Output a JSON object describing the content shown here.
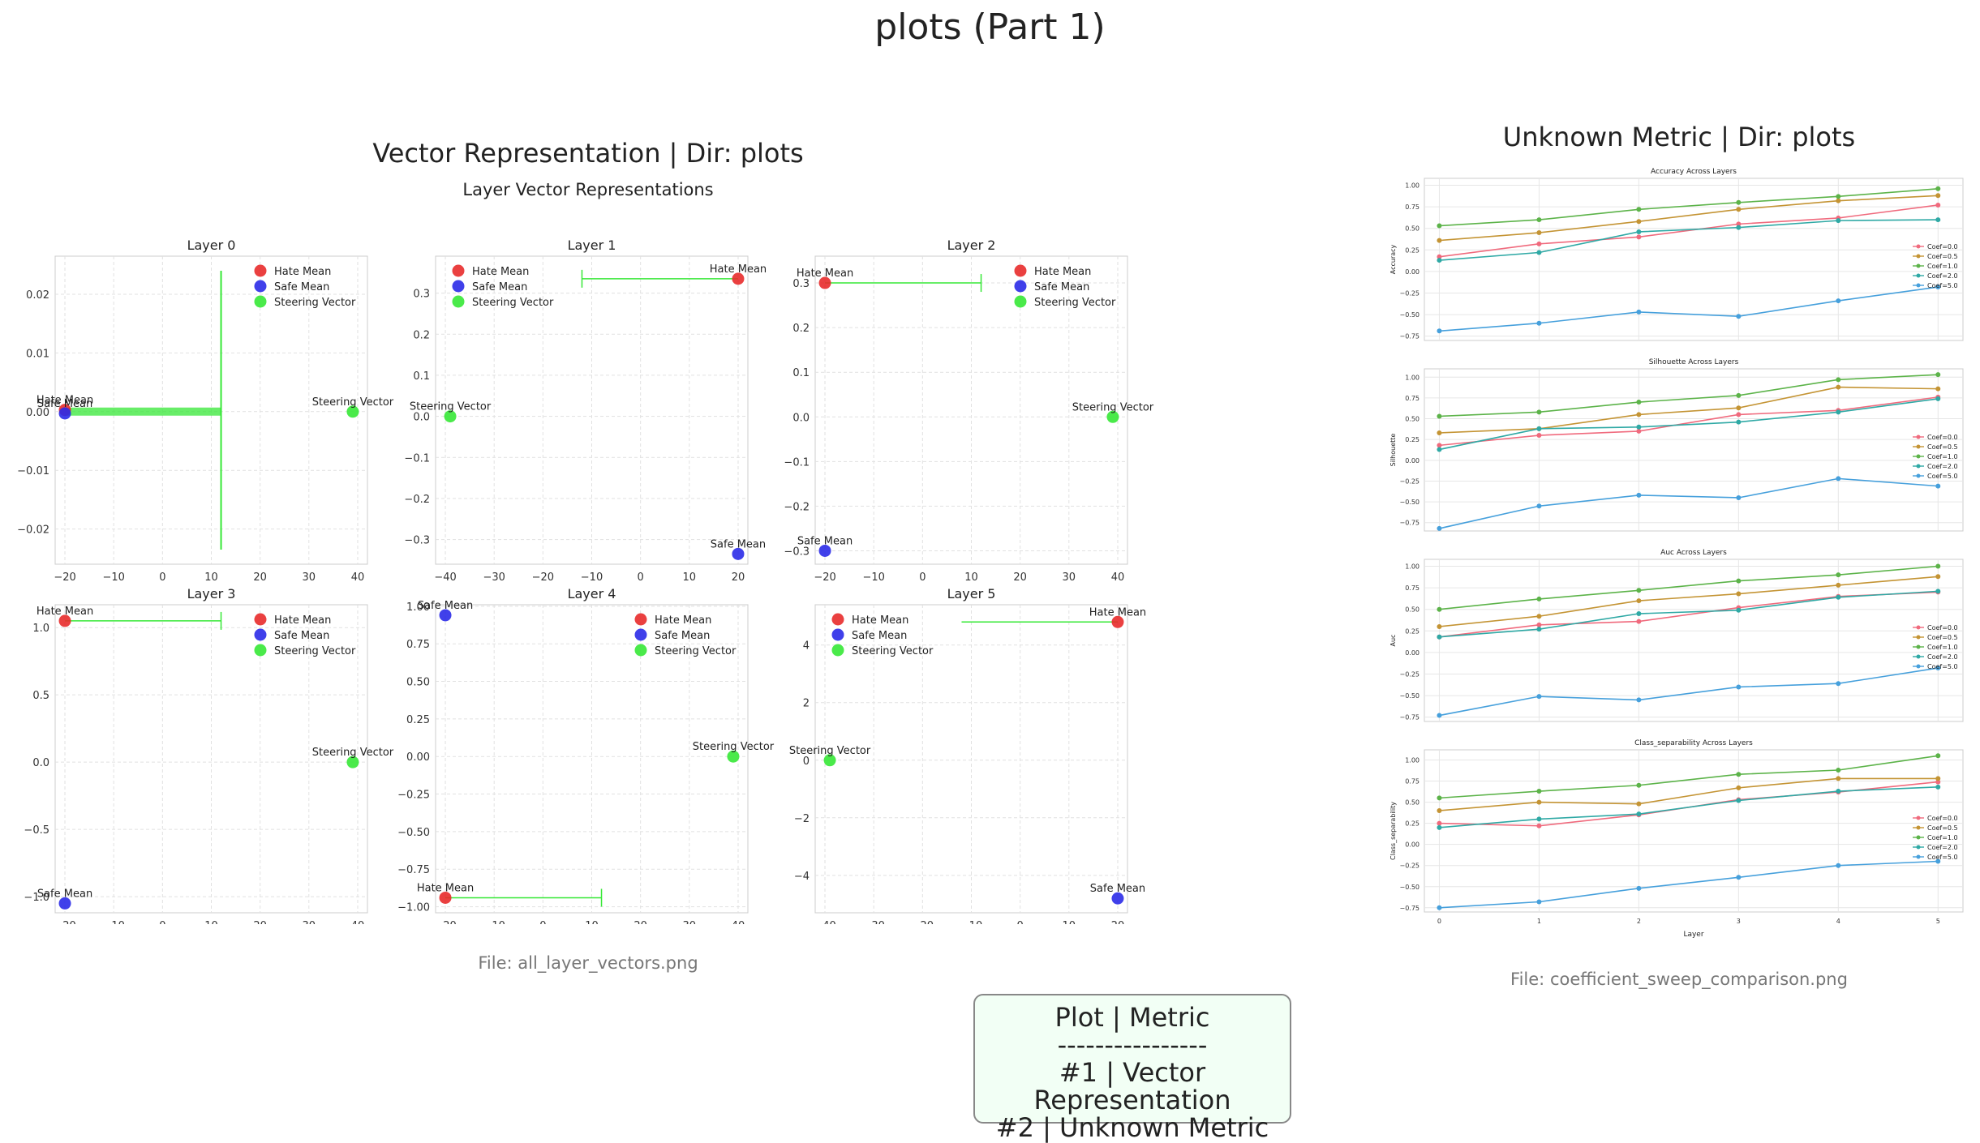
{
  "page": {
    "title": "plots (Part 1)",
    "left_panel": {
      "title": "Vector Representation | Dir: plots",
      "suptitle": "Layer Vector Representations",
      "file": "File: all_layer_vectors.png"
    },
    "right_panel": {
      "title": "Unknown Metric | Dir: plots",
      "file": "File: coefficient_sweep_comparison.png"
    },
    "legend_box": {
      "header": "Plot | Metric",
      "divider": "----------------",
      "rows": [
        "#1 | Vector Representation",
        "#2 | Unknown Metric"
      ]
    }
  },
  "colors": {
    "hate": "#e82b2b",
    "safe": "#2b2be8",
    "steer": "#36e836",
    "coef": [
      "#f06a7d",
      "#c49434",
      "#5cb349",
      "#2fa9a5",
      "#46a0dc"
    ]
  },
  "chart_data": [
    {
      "type": "scatter",
      "title": "Layer 0",
      "xlim": [
        -22,
        42
      ],
      "ylim": [
        -0.026,
        0.0265
      ],
      "xticks": [
        -20,
        -10,
        0,
        10,
        20,
        30,
        40
      ],
      "xtick_labels": [
        "−20",
        "−10",
        "0",
        "10",
        "20",
        "30",
        "40"
      ],
      "yticks": [
        -0.02,
        -0.01,
        0.0,
        0.01,
        0.02
      ],
      "ytick_labels": [
        "−0.02",
        "−0.01",
        "0.00",
        "0.01",
        "0.02"
      ],
      "legend": [
        "Hate Mean",
        "Safe Mean",
        "Steering Vector"
      ],
      "legend_pos": "top-right",
      "points": [
        {
          "label": "Hate Mean",
          "x": -20,
          "y": 0.0003,
          "kind": "hate"
        },
        {
          "label": "Safe Mean",
          "x": -20,
          "y": -0.0003,
          "kind": "safe"
        },
        {
          "label": "Steering Vector",
          "x": 39,
          "y": 0.0,
          "kind": "steer"
        }
      ],
      "arrow": {
        "x1": -20,
        "y1": 0.0,
        "x2": 12,
        "y2": 0.0,
        "head": "large"
      }
    },
    {
      "type": "scatter",
      "title": "Layer 1",
      "xlim": [
        -42,
        22
      ],
      "ylim": [
        -0.36,
        0.39
      ],
      "xticks": [
        -40,
        -30,
        -20,
        -10,
        0,
        10,
        20
      ],
      "xtick_labels": [
        "−40",
        "−30",
        "−20",
        "−10",
        "0",
        "10",
        "20"
      ],
      "yticks": [
        -0.3,
        -0.2,
        -0.1,
        0.0,
        0.1,
        0.2,
        0.3
      ],
      "ytick_labels": [
        "−0.3",
        "−0.2",
        "−0.1",
        "0.0",
        "0.1",
        "0.2",
        "0.3"
      ],
      "legend": [
        "Hate Mean",
        "Safe Mean",
        "Steering Vector"
      ],
      "legend_pos": "top-left",
      "points": [
        {
          "label": "Hate Mean",
          "x": 20,
          "y": 0.335,
          "kind": "hate"
        },
        {
          "label": "Safe Mean",
          "x": 20,
          "y": -0.335,
          "kind": "safe"
        },
        {
          "label": "Steering Vector",
          "x": -39,
          "y": 0.0,
          "kind": "steer"
        }
      ],
      "arrow": {
        "x1": 20,
        "y1": 0.335,
        "x2": -12,
        "y2": 0.335,
        "head": "bar"
      }
    },
    {
      "type": "scatter",
      "title": "Layer 2",
      "xlim": [
        -22,
        42
      ],
      "ylim": [
        -0.33,
        0.36
      ],
      "xticks": [
        -20,
        -10,
        0,
        10,
        20,
        30,
        40
      ],
      "xtick_labels": [
        "−20",
        "−10",
        "0",
        "10",
        "20",
        "30",
        "40"
      ],
      "yticks": [
        -0.3,
        -0.2,
        -0.1,
        0.0,
        0.1,
        0.2,
        0.3
      ],
      "ytick_labels": [
        "−0.3",
        "−0.2",
        "−0.1",
        "0.0",
        "0.1",
        "0.2",
        "0.3"
      ],
      "legend": [
        "Hate Mean",
        "Safe Mean",
        "Steering Vector"
      ],
      "legend_pos": "top-right",
      "points": [
        {
          "label": "Hate Mean",
          "x": -20,
          "y": 0.3,
          "kind": "hate"
        },
        {
          "label": "Safe Mean",
          "x": -20,
          "y": -0.3,
          "kind": "safe"
        },
        {
          "label": "Steering Vector",
          "x": 39,
          "y": 0.0,
          "kind": "steer"
        }
      ],
      "arrow": {
        "x1": -20,
        "y1": 0.3,
        "x2": 12,
        "y2": 0.3,
        "head": "bar"
      }
    },
    {
      "type": "scatter",
      "title": "Layer 3",
      "xlim": [
        -22,
        42
      ],
      "ylim": [
        -1.12,
        1.17
      ],
      "xticks": [
        -20,
        -10,
        0,
        10,
        20,
        30,
        40
      ],
      "xtick_labels": [
        "−20",
        "−10",
        "0",
        "10",
        "20",
        "30",
        "40"
      ],
      "yticks": [
        -1.0,
        -0.5,
        0.0,
        0.5,
        1.0
      ],
      "ytick_labels": [
        "−1.0",
        "−0.5",
        "0.0",
        "0.5",
        "1.0"
      ],
      "legend": [
        "Hate Mean",
        "Safe Mean",
        "Steering Vector"
      ],
      "legend_pos": "top-right",
      "points": [
        {
          "label": "Hate Mean",
          "x": -20,
          "y": 1.05,
          "kind": "hate"
        },
        {
          "label": "Safe Mean",
          "x": -20,
          "y": -1.05,
          "kind": "safe"
        },
        {
          "label": "Steering Vector",
          "x": 39,
          "y": 0.0,
          "kind": "steer"
        }
      ],
      "arrow": {
        "x1": -20,
        "y1": 1.05,
        "x2": 12,
        "y2": 1.05,
        "head": "bar"
      }
    },
    {
      "type": "scatter",
      "title": "Layer 4",
      "xlim": [
        -22,
        42
      ],
      "ylim": [
        -1.04,
        1.01
      ],
      "xticks": [
        -20,
        -10,
        0,
        10,
        20,
        30,
        40
      ],
      "xtick_labels": [
        "−20",
        "−10",
        "0",
        "10",
        "20",
        "30",
        "40"
      ],
      "yticks": [
        -1.0,
        -0.75,
        -0.5,
        -0.25,
        0.0,
        0.25,
        0.5,
        0.75,
        1.0
      ],
      "ytick_labels": [
        "−1.00",
        "−0.75",
        "−0.50",
        "−0.25",
        "0.00",
        "0.25",
        "0.50",
        "0.75",
        "1.00"
      ],
      "legend": [
        "Hate Mean",
        "Safe Mean",
        "Steering Vector"
      ],
      "legend_pos": "top-right",
      "points": [
        {
          "label": "Hate Mean",
          "x": -20,
          "y": -0.94,
          "kind": "hate"
        },
        {
          "label": "Safe Mean",
          "x": -20,
          "y": 0.94,
          "kind": "safe"
        },
        {
          "label": "Steering Vector",
          "x": 39,
          "y": 0.0,
          "kind": "steer"
        }
      ],
      "arrow": {
        "x1": -20,
        "y1": -0.94,
        "x2": 12,
        "y2": -0.94,
        "head": "bar"
      }
    },
    {
      "type": "scatter",
      "title": "Layer 5",
      "xlim": [
        -42,
        22
      ],
      "ylim": [
        -5.3,
        5.4
      ],
      "xticks": [
        -40,
        -30,
        -20,
        -10,
        0,
        10,
        20
      ],
      "xtick_labels": [
        "−40",
        "−30",
        "−20",
        "−10",
        "0",
        "10",
        "20"
      ],
      "yticks": [
        -4,
        -2,
        0,
        2,
        4
      ],
      "ytick_labels": [
        "−4",
        "−2",
        "0",
        "2",
        "4"
      ],
      "legend": [
        "Hate Mean",
        "Safe Mean",
        "Steering Vector"
      ],
      "legend_pos": "top-left",
      "points": [
        {
          "label": "Hate Mean",
          "x": 20,
          "y": 4.8,
          "kind": "hate"
        },
        {
          "label": "Safe Mean",
          "x": 20,
          "y": -4.8,
          "kind": "safe"
        },
        {
          "label": "Steering Vector",
          "x": -39,
          "y": 0.0,
          "kind": "steer"
        }
      ],
      "arrow": {
        "x1": 20,
        "y1": 4.8,
        "x2": -12,
        "y2": 4.8,
        "head": "none"
      }
    },
    {
      "type": "line",
      "title": "Accuracy Across Layers",
      "ylabel": "Accuracy",
      "xlim": [
        -0.15,
        5.25
      ],
      "ylim": [
        -0.8,
        1.08
      ],
      "x": [
        0,
        1,
        2,
        3,
        4,
        5
      ],
      "yticks": [
        -0.75,
        -0.5,
        -0.25,
        0.0,
        0.25,
        0.5,
        0.75,
        1.0
      ],
      "ytick_labels": [
        "−0.75",
        "−0.50",
        "−0.25",
        "0.00",
        "0.25",
        "0.50",
        "0.75",
        "1.00"
      ],
      "legend_pos": "right",
      "series": [
        {
          "name": "Coef=0.0",
          "values": [
            0.17,
            0.32,
            0.4,
            0.55,
            0.62,
            0.77
          ]
        },
        {
          "name": "Coef=0.5",
          "values": [
            0.36,
            0.45,
            0.58,
            0.72,
            0.82,
            0.88
          ]
        },
        {
          "name": "Coef=1.0",
          "values": [
            0.53,
            0.6,
            0.72,
            0.8,
            0.87,
            0.96
          ]
        },
        {
          "name": "Coef=2.0",
          "values": [
            0.13,
            0.22,
            0.46,
            0.51,
            0.59,
            0.6
          ]
        },
        {
          "name": "Coef=5.0",
          "values": [
            -0.69,
            -0.6,
            -0.47,
            -0.52,
            -0.34,
            -0.18
          ]
        }
      ]
    },
    {
      "type": "line",
      "title": "Silhouette Across Layers",
      "ylabel": "Silhouette",
      "xlim": [
        -0.15,
        5.25
      ],
      "ylim": [
        -0.85,
        1.1
      ],
      "x": [
        0,
        1,
        2,
        3,
        4,
        5
      ],
      "yticks": [
        -0.75,
        -0.5,
        -0.25,
        0.0,
        0.25,
        0.5,
        0.75,
        1.0
      ],
      "ytick_labels": [
        "−0.75",
        "−0.50",
        "−0.25",
        "0.00",
        "0.25",
        "0.50",
        "0.75",
        "1.00"
      ],
      "legend_pos": "right",
      "series": [
        {
          "name": "Coef=0.0",
          "values": [
            0.18,
            0.3,
            0.35,
            0.55,
            0.6,
            0.76
          ]
        },
        {
          "name": "Coef=0.5",
          "values": [
            0.33,
            0.38,
            0.55,
            0.63,
            0.88,
            0.86
          ]
        },
        {
          "name": "Coef=1.0",
          "values": [
            0.53,
            0.58,
            0.7,
            0.78,
            0.97,
            1.03
          ]
        },
        {
          "name": "Coef=2.0",
          "values": [
            0.13,
            0.38,
            0.4,
            0.46,
            0.58,
            0.74
          ]
        },
        {
          "name": "Coef=5.0",
          "values": [
            -0.82,
            -0.55,
            -0.42,
            -0.45,
            -0.22,
            -0.31
          ]
        }
      ]
    },
    {
      "type": "line",
      "title": "Auc Across Layers",
      "ylabel": "Auc",
      "xlim": [
        -0.15,
        5.25
      ],
      "ylim": [
        -0.8,
        1.08
      ],
      "x": [
        0,
        1,
        2,
        3,
        4,
        5
      ],
      "yticks": [
        -0.75,
        -0.5,
        -0.25,
        0.0,
        0.25,
        0.5,
        0.75,
        1.0
      ],
      "ytick_labels": [
        "−0.75",
        "−0.50",
        "−0.25",
        "0.00",
        "0.25",
        "0.50",
        "0.75",
        "1.00"
      ],
      "legend_pos": "right",
      "series": [
        {
          "name": "Coef=0.0",
          "values": [
            0.18,
            0.32,
            0.36,
            0.52,
            0.65,
            0.7
          ]
        },
        {
          "name": "Coef=0.5",
          "values": [
            0.3,
            0.42,
            0.6,
            0.68,
            0.78,
            0.88
          ]
        },
        {
          "name": "Coef=1.0",
          "values": [
            0.5,
            0.62,
            0.72,
            0.83,
            0.9,
            1.0
          ]
        },
        {
          "name": "Coef=2.0",
          "values": [
            0.18,
            0.27,
            0.45,
            0.49,
            0.64,
            0.71
          ]
        },
        {
          "name": "Coef=5.0",
          "values": [
            -0.73,
            -0.51,
            -0.55,
            -0.4,
            -0.36,
            -0.18
          ]
        }
      ]
    },
    {
      "type": "line",
      "title": "Class_separability Across Layers",
      "ylabel": "Class_separability",
      "xlabel": "Layer",
      "xlim": [
        -0.15,
        5.25
      ],
      "ylim": [
        -0.8,
        1.12
      ],
      "x": [
        0,
        1,
        2,
        3,
        4,
        5
      ],
      "xtick_labels": [
        "0",
        "1",
        "2",
        "3",
        "4",
        "5"
      ],
      "yticks": [
        -0.75,
        -0.5,
        -0.25,
        0.0,
        0.25,
        0.5,
        0.75,
        1.0
      ],
      "ytick_labels": [
        "−0.75",
        "−0.50",
        "−0.25",
        "0.00",
        "0.25",
        "0.50",
        "0.75",
        "1.00"
      ],
      "legend_pos": "right",
      "series": [
        {
          "name": "Coef=0.0",
          "values": [
            0.25,
            0.22,
            0.35,
            0.53,
            0.62,
            0.74
          ]
        },
        {
          "name": "Coef=0.5",
          "values": [
            0.4,
            0.5,
            0.48,
            0.67,
            0.78,
            0.78
          ]
        },
        {
          "name": "Coef=1.0",
          "values": [
            0.55,
            0.63,
            0.7,
            0.83,
            0.88,
            1.05
          ]
        },
        {
          "name": "Coef=2.0",
          "values": [
            0.2,
            0.3,
            0.36,
            0.52,
            0.63,
            0.68
          ]
        },
        {
          "name": "Coef=5.0",
          "values": [
            -0.75,
            -0.68,
            -0.52,
            -0.39,
            -0.25,
            -0.2
          ]
        }
      ]
    }
  ]
}
